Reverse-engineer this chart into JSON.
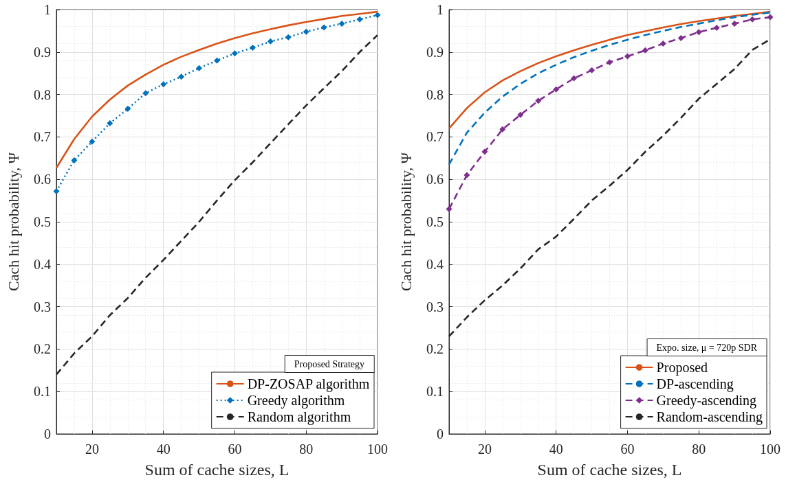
{
  "chart_data": [
    {
      "type": "line",
      "xlabel": "Sum of cache sizes, L",
      "ylabel": "Cach hit probability, Ψ",
      "legend_title": "Proposed Strategy",
      "legend": "bottom right",
      "grid": true,
      "x": [
        10,
        15,
        20,
        25,
        30,
        35,
        40,
        45,
        50,
        55,
        60,
        65,
        70,
        75,
        80,
        85,
        90,
        95,
        100
      ],
      "xlim": [
        10,
        100
      ],
      "xticks": [
        20,
        40,
        60,
        80,
        100
      ],
      "ylim": [
        0,
        1
      ],
      "yticks": [
        0,
        0.1,
        0.2,
        0.3,
        0.4,
        0.5,
        0.6,
        0.7,
        0.8,
        0.9,
        1
      ],
      "series": [
        {
          "name": "DP-ZOSAP algorithm",
          "color": "#d95319",
          "line_style": "solid",
          "marker": "none",
          "values": [
            0.627,
            0.695,
            0.748,
            0.788,
            0.821,
            0.847,
            0.87,
            0.889,
            0.905,
            0.92,
            0.933,
            0.944,
            0.954,
            0.963,
            0.971,
            0.978,
            0.985,
            0.99,
            0.995
          ]
        },
        {
          "name": "Greedy algorithm",
          "color": "#0072bd",
          "line_style": "dotted",
          "marker": "diamond",
          "values": [
            0.572,
            0.645,
            0.689,
            0.732,
            0.766,
            0.803,
            0.824,
            0.842,
            0.862,
            0.88,
            0.897,
            0.91,
            0.925,
            0.935,
            0.948,
            0.958,
            0.967,
            0.977,
            0.987
          ]
        },
        {
          "name": "Random algorithm",
          "color": "#262626",
          "line_style": "dashed",
          "marker": "none",
          "values": [
            0.14,
            0.19,
            0.23,
            0.28,
            0.32,
            0.368,
            0.41,
            0.455,
            0.5,
            0.55,
            0.598,
            0.64,
            0.685,
            0.73,
            0.774,
            0.815,
            0.855,
            0.9,
            0.94
          ]
        }
      ]
    },
    {
      "type": "line",
      "xlabel": "Sum of cache sizes, L",
      "ylabel": "Cach hit probability, Ψ",
      "legend_title": "Expo. size, μ = 720p SDR",
      "legend": "bottom right",
      "grid": true,
      "x": [
        10,
        15,
        20,
        25,
        30,
        35,
        40,
        45,
        50,
        55,
        60,
        65,
        70,
        75,
        80,
        85,
        90,
        95,
        100
      ],
      "xlim": [
        10,
        100
      ],
      "xticks": [
        20,
        40,
        60,
        80,
        100
      ],
      "ylim": [
        0,
        1
      ],
      "yticks": [
        0,
        0.1,
        0.2,
        0.3,
        0.4,
        0.5,
        0.6,
        0.7,
        0.8,
        0.9,
        1
      ],
      "series": [
        {
          "name": "Proposed",
          "color": "#d95319",
          "line_style": "solid",
          "marker": "none",
          "values": [
            0.72,
            0.768,
            0.805,
            0.833,
            0.855,
            0.874,
            0.89,
            0.904,
            0.917,
            0.929,
            0.94,
            0.949,
            0.958,
            0.966,
            0.973,
            0.979,
            0.985,
            0.99,
            0.995
          ]
        },
        {
          "name": "DP-ascending",
          "color": "#0072bd",
          "line_style": "dashed",
          "marker": "none",
          "values": [
            0.635,
            0.71,
            0.757,
            0.795,
            0.825,
            0.85,
            0.87,
            0.888,
            0.903,
            0.917,
            0.929,
            0.94,
            0.95,
            0.959,
            0.967,
            0.975,
            0.982,
            0.988,
            0.993
          ]
        },
        {
          "name": "Greedy-ascending",
          "color": "#7e2f8e",
          "line_style": "dashed",
          "marker": "diamond",
          "values": [
            0.53,
            0.61,
            0.665,
            0.718,
            0.752,
            0.785,
            0.812,
            0.838,
            0.857,
            0.876,
            0.89,
            0.904,
            0.92,
            0.933,
            0.947,
            0.957,
            0.967,
            0.977,
            0.982
          ]
        },
        {
          "name": "Random-ascending",
          "color": "#262626",
          "line_style": "dashed",
          "marker": "none",
          "values": [
            0.23,
            0.275,
            0.315,
            0.35,
            0.39,
            0.435,
            0.465,
            0.507,
            0.55,
            0.585,
            0.622,
            0.665,
            0.703,
            0.745,
            0.79,
            0.825,
            0.86,
            0.905,
            0.93
          ]
        }
      ]
    }
  ]
}
